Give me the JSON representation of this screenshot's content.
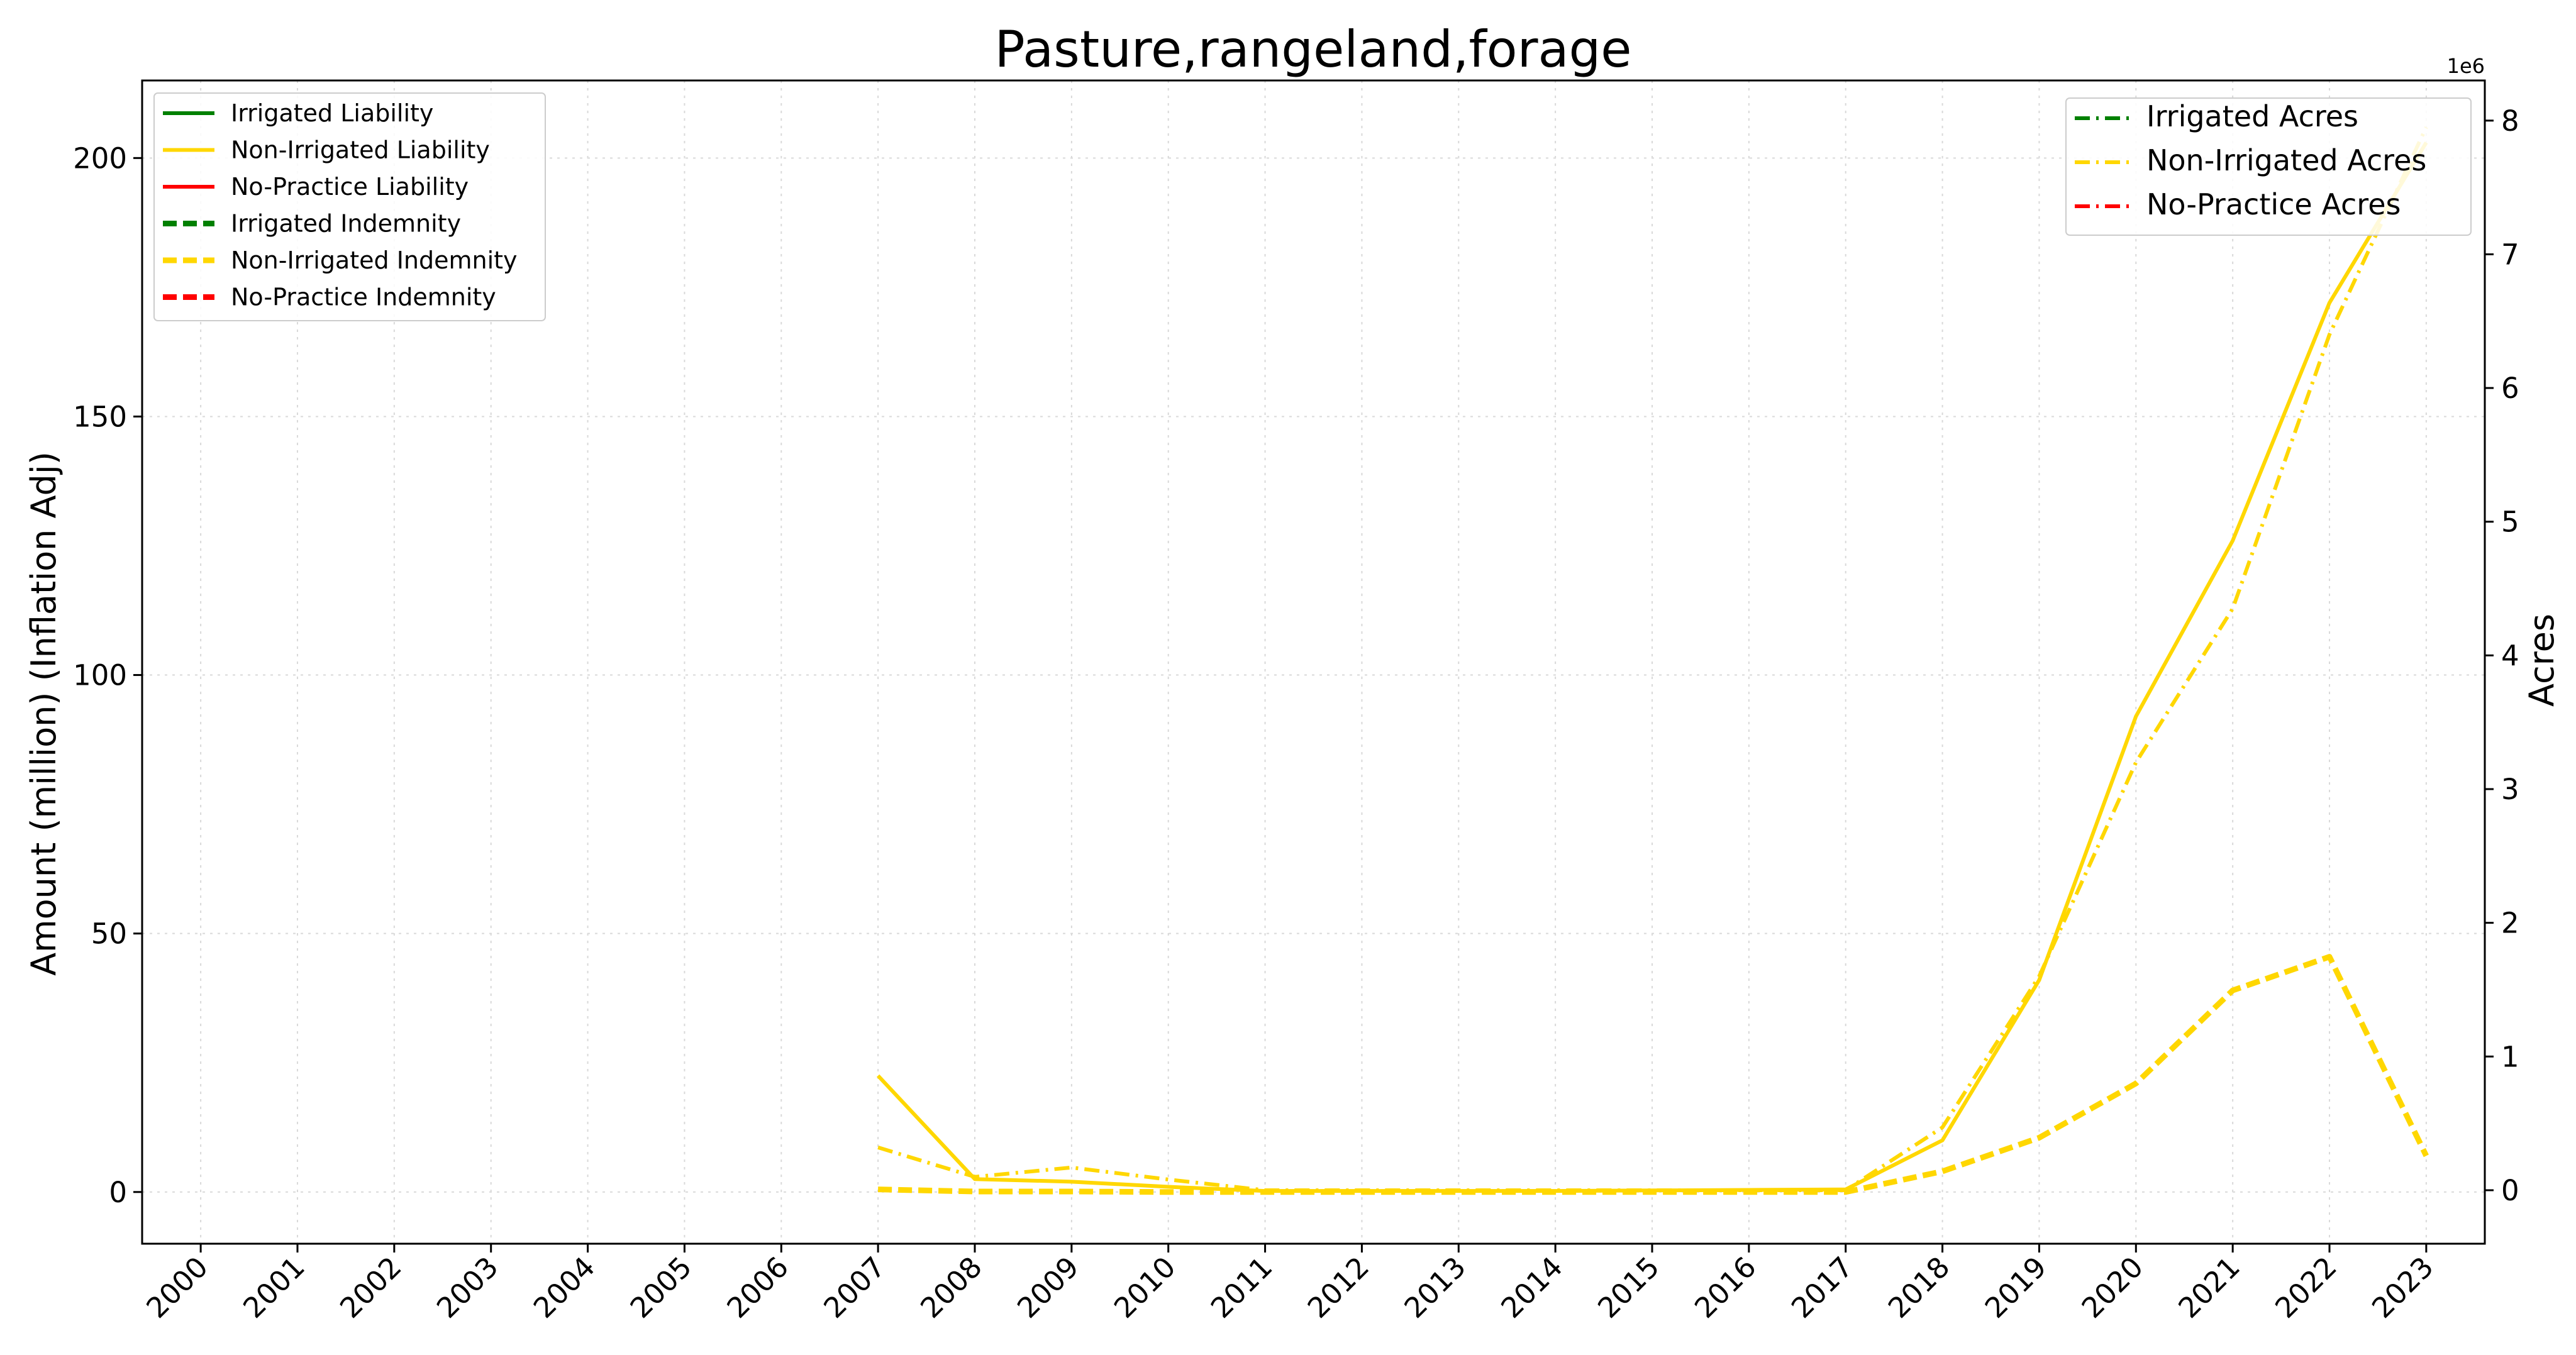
{
  "chart_data": {
    "type": "line",
    "title": "Pasture,rangeland,forage",
    "ylabel": "Amount (million) (Inflation Adj)",
    "y2label": "Acres",
    "y2_offset_text": "1e6",
    "x": [
      "2000",
      "2001",
      "2002",
      "2003",
      "2004",
      "2005",
      "2006",
      "2007",
      "2008",
      "2009",
      "2010",
      "2011",
      "2012",
      "2013",
      "2014",
      "2015",
      "2016",
      "2017",
      "2018",
      "2019",
      "2020",
      "2021",
      "2022",
      "2023"
    ],
    "ylim": [
      -10,
      215
    ],
    "y2lim": [
      -0.4,
      8.3
    ],
    "yticks": [
      0,
      50,
      100,
      150,
      200
    ],
    "y2ticks": [
      0,
      1,
      2,
      3,
      4,
      5,
      6,
      7,
      8
    ],
    "grid": true,
    "colors": {
      "irrigated": "#008000",
      "non_irrigated": "#FFD700",
      "no_practice": "#FF0000"
    },
    "legend_left": {
      "placement": "upper-left",
      "entries": [
        {
          "label": "Irrigated Liability",
          "color": "#008000",
          "style": "solid"
        },
        {
          "label": "Non-Irrigated Liability",
          "color": "#FFD700",
          "style": "solid"
        },
        {
          "label": "No-Practice Liability",
          "color": "#FF0000",
          "style": "solid"
        },
        {
          "label": "Irrigated Indemnity",
          "color": "#008000",
          "style": "dashed"
        },
        {
          "label": "Non-Irrigated Indemnity",
          "color": "#FFD700",
          "style": "dashed"
        },
        {
          "label": "No-Practice Indemnity",
          "color": "#FF0000",
          "style": "dashed"
        }
      ]
    },
    "legend_right": {
      "placement": "upper-right",
      "entries": [
        {
          "label": "Irrigated Acres",
          "color": "#008000",
          "style": "dashdot"
        },
        {
          "label": "Non-Irrigated Acres",
          "color": "#FFD700",
          "style": "dashdot"
        },
        {
          "label": "No-Practice Acres",
          "color": "#FF0000",
          "style": "dashdot"
        }
      ]
    },
    "series": [
      {
        "name": "Non-Irrigated Liability",
        "axis": "left",
        "color": "#FFD700",
        "style": "solid",
        "x": [
          "2007",
          "2008",
          "2009",
          "2010",
          "2011",
          "2012",
          "2013",
          "2014",
          "2015",
          "2016",
          "2017",
          "2018",
          "2019",
          "2020",
          "2021",
          "2022",
          "2023"
        ],
        "values": [
          22.5,
          2.5,
          2.0,
          1.0,
          0.2,
          0.2,
          0.2,
          0.2,
          0.3,
          0.4,
          0.5,
          10,
          41,
          92,
          126,
          172,
          203
        ]
      },
      {
        "name": "Non-Irrigated Indemnity",
        "axis": "left",
        "color": "#FFD700",
        "style": "dashed",
        "x": [
          "2007",
          "2008",
          "2009",
          "2010",
          "2011",
          "2012",
          "2013",
          "2014",
          "2015",
          "2016",
          "2017",
          "2018",
          "2019",
          "2020",
          "2021",
          "2022",
          "2023"
        ],
        "values": [
          0.5,
          0.1,
          0.1,
          0.0,
          0.0,
          0.0,
          0.0,
          0.0,
          0.0,
          0.0,
          0.0,
          4,
          10.5,
          21,
          39,
          45.5,
          7
        ]
      },
      {
        "name": "Non-Irrigated Acres",
        "axis": "right",
        "color": "#FFD700",
        "style": "dashdot",
        "x": [
          "2007",
          "2008",
          "2009",
          "2010",
          "2011",
          "2012",
          "2013",
          "2014",
          "2015",
          "2016",
          "2017",
          "2018",
          "2019",
          "2020",
          "2021",
          "2022",
          "2023"
        ],
        "values": [
          0.32,
          0.1,
          0.17,
          0.08,
          0.0,
          0.0,
          0.0,
          0.0,
          0.0,
          0.0,
          0.0,
          0.47,
          1.6,
          3.2,
          4.35,
          6.4,
          7.95
        ]
      }
    ]
  }
}
